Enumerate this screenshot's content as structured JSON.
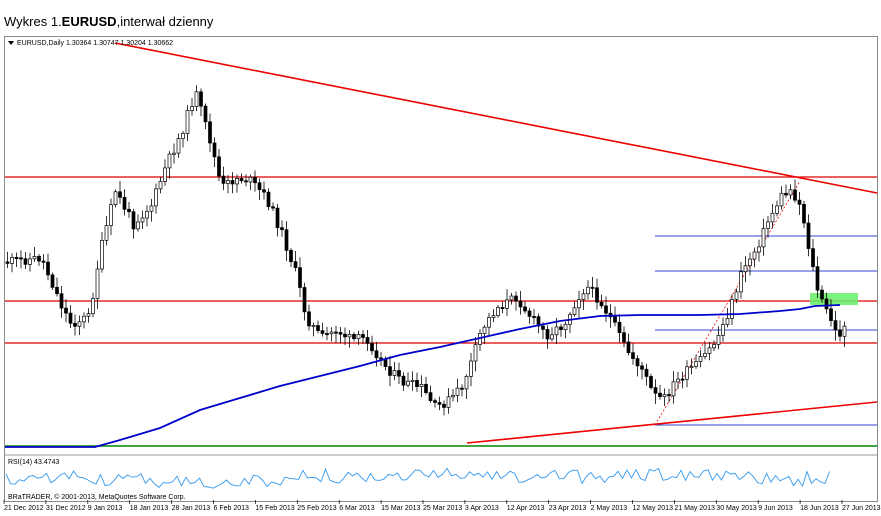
{
  "caption": {
    "prefix": "Wykres 1.",
    "symbol": "EURUSD",
    "suffix": ",interwał dzienny"
  },
  "chart": {
    "header": "EURUSD,Daily  1.30364 1.30747 1.30204 1.30662",
    "rsi_label": "RSI(14) 43.4743",
    "copyright": "BRaTRADER, © 2001-2013, MetaQuotes Software Corp.",
    "dates": [
      "21 Dec 2012",
      "31 Dec 2012",
      "9 Jan 2013",
      "18 Jan 2013",
      "28 Jan 2013",
      "6 Feb 2013",
      "15 Feb 2013",
      "25 Feb 2013",
      "6 Mar 2013",
      "15 Mar 2013",
      "25 Mar 2013",
      "3 Apr 2013",
      "12 Apr 2013",
      "23 Apr 2013",
      "2 May 2013",
      "12 May 2013",
      "21 May 2013",
      "30 May 2013",
      "9 Jun 2013",
      "18 Jun 2013",
      "27 Jun 2013"
    ]
  },
  "colors": {
    "bull": "#ffffff",
    "bear": "#000000",
    "resistance": "#dd0000",
    "trend": "#ee0000",
    "moving_average": "#0000cc",
    "fibo": "#3344cc",
    "zone": "#66ee66",
    "rsi": "#3399ee",
    "support_green": "#008800"
  }
}
